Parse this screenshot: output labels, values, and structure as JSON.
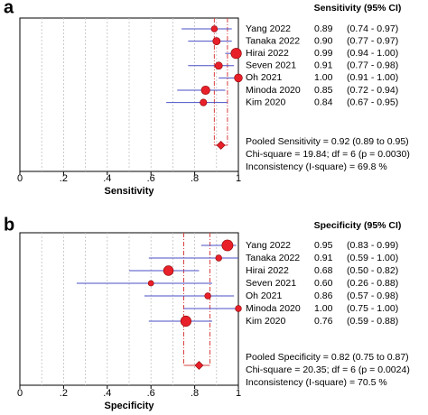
{
  "chart_data": [
    {
      "type": "forest",
      "panel_label": "a",
      "xlabel": "Sensitivity",
      "xlim": [
        0,
        1
      ],
      "x_ticks": [
        0,
        0.2,
        0.4,
        0.6,
        0.8,
        1
      ],
      "x_tick_labels": [
        "0",
        ".2",
        ".4",
        ".6",
        ".8",
        "1"
      ],
      "column_header": "Sensitivity (95% CI)",
      "studies": [
        {
          "name": "Yang 2022",
          "estimate": 0.89,
          "lower": 0.74,
          "upper": 0.97,
          "estimate_label": "0.89",
          "ci_label": "(0.74 - 0.97)",
          "weight": 1.0
        },
        {
          "name": "Tanaka 2022",
          "estimate": 0.9,
          "lower": 0.77,
          "upper": 0.97,
          "estimate_label": "0.90",
          "ci_label": "(0.77 - 0.97)",
          "weight": 1.2
        },
        {
          "name": "Hirai 2022",
          "estimate": 0.99,
          "lower": 0.94,
          "upper": 1.0,
          "estimate_label": "0.99",
          "ci_label": "(0.94 - 1.00)",
          "weight": 1.7
        },
        {
          "name": "Seven 2021",
          "estimate": 0.91,
          "lower": 0.77,
          "upper": 0.98,
          "estimate_label": "0.91",
          "ci_label": "(0.77 - 0.98)",
          "weight": 1.2
        },
        {
          "name": "Oh 2021",
          "estimate": 1.0,
          "lower": 0.91,
          "upper": 1.0,
          "estimate_label": "1.00",
          "ci_label": "(0.91 - 1.00)",
          "weight": 1.3
        },
        {
          "name": "Minoda 2020",
          "estimate": 0.85,
          "lower": 0.72,
          "upper": 0.94,
          "estimate_label": "0.85",
          "ci_label": "(0.72 - 0.94)",
          "weight": 1.4
        },
        {
          "name": "Kim 2020",
          "estimate": 0.84,
          "lower": 0.67,
          "upper": 0.95,
          "estimate_label": "0.84",
          "ci_label": "(0.67 - 0.95)",
          "weight": 1.1
        }
      ],
      "pooled": {
        "estimate": 0.92,
        "lower": 0.89,
        "upper": 0.95
      },
      "stats_text": [
        "Pooled Sensitivity = 0.92 (0.89 to 0.95)",
        "Chi-square = 19.84; df = 6 (p = 0.0030)",
        "Inconsistency (I-square) = 69.8 %"
      ],
      "grid": true,
      "colors": {
        "marker": "#e8202a",
        "ci_line": "#4a4fc4",
        "pooled_line": "#d94040",
        "grid": "#c0c0c0"
      }
    },
    {
      "type": "forest",
      "panel_label": "b",
      "xlabel": "Specificity",
      "xlim": [
        0,
        1
      ],
      "x_ticks": [
        0,
        0.2,
        0.4,
        0.6,
        0.8,
        1
      ],
      "x_tick_labels": [
        "0",
        ".2",
        ".4",
        ".6",
        ".8",
        "1"
      ],
      "column_header": "Specificity (95% CI)",
      "studies": [
        {
          "name": "Yang 2022",
          "estimate": 0.95,
          "lower": 0.83,
          "upper": 0.99,
          "estimate_label": "0.95",
          "ci_label": "(0.83 - 0.99)",
          "weight": 1.8
        },
        {
          "name": "Tanaka 2022",
          "estimate": 0.91,
          "lower": 0.59,
          "upper": 1.0,
          "estimate_label": "0.91",
          "ci_label": "(0.59 - 1.00)",
          "weight": 1.0
        },
        {
          "name": "Hirai 2022",
          "estimate": 0.68,
          "lower": 0.5,
          "upper": 0.82,
          "estimate_label": "0.68",
          "ci_label": "(0.50 - 0.82)",
          "weight": 1.6
        },
        {
          "name": "Seven 2021",
          "estimate": 0.6,
          "lower": 0.26,
          "upper": 0.88,
          "estimate_label": "0.60",
          "ci_label": "(0.26 - 0.88)",
          "weight": 0.9
        },
        {
          "name": "Oh 2021",
          "estimate": 0.86,
          "lower": 0.57,
          "upper": 0.98,
          "estimate_label": "0.86",
          "ci_label": "(0.57 - 0.98)",
          "weight": 1.0
        },
        {
          "name": "Minoda 2020",
          "estimate": 1.0,
          "lower": 0.75,
          "upper": 1.0,
          "estimate_label": "1.00",
          "ci_label": "(0.75 - 1.00)",
          "weight": 1.0
        },
        {
          "name": "Kim 2020",
          "estimate": 0.76,
          "lower": 0.59,
          "upper": 0.88,
          "estimate_label": "0.76",
          "ci_label": "(0.59 - 0.88)",
          "weight": 1.7
        }
      ],
      "pooled": {
        "estimate": 0.82,
        "lower": 0.75,
        "upper": 0.87
      },
      "stats_text": [
        "Pooled Specificity = 0.82 (0.75 to 0.87)",
        "Chi-square = 20.35; df = 6 (p = 0.0024)",
        "Inconsistency (I-square) = 70.5 %"
      ],
      "grid": true,
      "colors": {
        "marker": "#e8202a",
        "ci_line": "#4a4fc4",
        "pooled_line": "#d94040",
        "grid": "#c0c0c0"
      }
    }
  ]
}
